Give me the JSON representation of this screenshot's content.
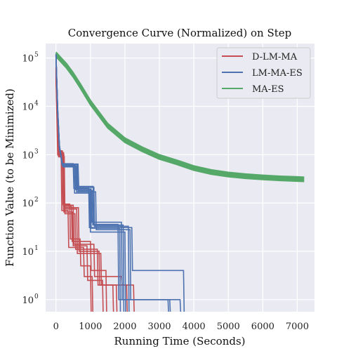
{
  "chart_data": {
    "type": "line",
    "title": "Convergence Curve (Normalized) on Step",
    "xlabel": "Running Time (Seconds)",
    "ylabel": "Function Value (to be Minimized)",
    "xlim": [
      -300,
      7500
    ],
    "ylim_log10": [
      -0.25,
      5.3
    ],
    "y_scale": "log",
    "grid": true,
    "legend_position": "top-right",
    "x_ticks": [
      0,
      1000,
      2000,
      3000,
      4000,
      5000,
      6000,
      7000
    ],
    "x_tick_labels": [
      "0",
      "1000",
      "2000",
      "3000",
      "4000",
      "5000",
      "6000",
      "7000"
    ],
    "y_ticks": [
      1,
      10,
      100,
      1000,
      10000,
      100000
    ],
    "y_tick_bases": [
      "10",
      "10",
      "10",
      "10",
      "10",
      "10"
    ],
    "y_tick_exps": [
      "0",
      "1",
      "2",
      "3",
      "4",
      "5"
    ],
    "colors": {
      "D-LM-MA": "#c44e52",
      "LM-MA-ES": "#4c72b0",
      "MA-ES": "#55a868",
      "plot_bg": "#eaeaf2",
      "grid": "#ffffff"
    },
    "series": [
      {
        "name": "D-LM-MA",
        "color": "#c44e52",
        "runs": [
          [
            [
              0,
              60000
            ],
            [
              60,
              1200
            ],
            [
              180,
              1200
            ],
            [
              200,
              95
            ],
            [
              400,
              95
            ],
            [
              420,
              18
            ],
            [
              700,
              18
            ],
            [
              720,
              5
            ],
            [
              1000,
              5
            ],
            [
              1020,
              0.5
            ]
          ],
          [
            [
              0,
              40000
            ],
            [
              50,
              1000
            ],
            [
              150,
              1000
            ],
            [
              170,
              70
            ],
            [
              350,
              70
            ],
            [
              370,
              12
            ],
            [
              800,
              12
            ],
            [
              820,
              3
            ],
            [
              1050,
              3
            ],
            [
              1070,
              0.5
            ]
          ],
          [
            [
              0,
              50000
            ],
            [
              70,
              1100
            ],
            [
              220,
              1100
            ],
            [
              240,
              85
            ],
            [
              450,
              85
            ],
            [
              470,
              16
            ],
            [
              1000,
              16
            ],
            [
              1020,
              4
            ],
            [
              1450,
              4
            ],
            [
              1470,
              0.5
            ]
          ],
          [
            [
              0,
              55000
            ],
            [
              80,
              900
            ],
            [
              240,
              900
            ],
            [
              260,
              60
            ],
            [
              550,
              60
            ],
            [
              570,
              11
            ],
            [
              1200,
              11
            ],
            [
              1220,
              2
            ],
            [
              1650,
              2
            ],
            [
              1670,
              0.5
            ]
          ],
          [
            [
              0,
              45000
            ],
            [
              60,
              1050
            ],
            [
              200,
              1050
            ],
            [
              220,
              75
            ],
            [
              600,
              75
            ],
            [
              620,
              9
            ],
            [
              1300,
              9
            ],
            [
              1320,
              2
            ],
            [
              1750,
              2
            ],
            [
              1770,
              0.5
            ]
          ],
          [
            [
              0,
              65000
            ],
            [
              55,
              1150
            ],
            [
              190,
              1150
            ],
            [
              210,
              90
            ],
            [
              500,
              90
            ],
            [
              520,
              14
            ],
            [
              1100,
              14
            ],
            [
              1120,
              3
            ],
            [
              1900,
              3
            ],
            [
              1920,
              2
            ],
            [
              2050,
              2
            ],
            [
              2070,
              0.5
            ]
          ],
          [
            [
              0,
              48000
            ],
            [
              65,
              950
            ],
            [
              210,
              950
            ],
            [
              230,
              65
            ],
            [
              480,
              65
            ],
            [
              500,
              13
            ],
            [
              900,
              13
            ],
            [
              920,
              2.5
            ],
            [
              1350,
              2.5
            ],
            [
              1370,
              0.5
            ]
          ],
          [
            [
              0,
              52000
            ],
            [
              75,
              1000
            ],
            [
              230,
              1000
            ],
            [
              250,
              80
            ],
            [
              650,
              80
            ],
            [
              670,
              10
            ],
            [
              1250,
              10
            ],
            [
              1270,
              2
            ],
            [
              2250,
              2
            ],
            [
              2270,
              0.5
            ]
          ]
        ]
      },
      {
        "name": "LM-MA-ES",
        "color": "#4c72b0",
        "runs": [
          [
            [
              0,
              120000
            ],
            [
              50,
              8000
            ],
            [
              100,
              1500
            ],
            [
              180,
              600
            ],
            [
              550,
              600
            ],
            [
              570,
              190
            ],
            [
              1000,
              190
            ],
            [
              1020,
              30
            ],
            [
              1850,
              30
            ],
            [
              1870,
              0.5
            ]
          ],
          [
            [
              0,
              110000
            ],
            [
              50,
              7000
            ],
            [
              100,
              1400
            ],
            [
              200,
              580
            ],
            [
              600,
              580
            ],
            [
              620,
              210
            ],
            [
              1100,
              210
            ],
            [
              1120,
              33
            ],
            [
              2100,
              33
            ],
            [
              2120,
              0.5
            ]
          ],
          [
            [
              0,
              115000
            ],
            [
              50,
              7500
            ],
            [
              100,
              1450
            ],
            [
              190,
              620
            ],
            [
              620,
              620
            ],
            [
              640,
              180
            ],
            [
              1050,
              180
            ],
            [
              1070,
              35
            ],
            [
              1950,
              35
            ],
            [
              1970,
              0.5
            ]
          ],
          [
            [
              0,
              118000
            ],
            [
              50,
              9000
            ],
            [
              100,
              1600
            ],
            [
              170,
              650
            ],
            [
              500,
              650
            ],
            [
              520,
              200
            ],
            [
              950,
              200
            ],
            [
              970,
              31
            ],
            [
              2200,
              31
            ],
            [
              2220,
              4
            ],
            [
              3700,
              4
            ],
            [
              3720,
              0.5
            ]
          ],
          [
            [
              0,
              112000
            ],
            [
              50,
              7200
            ],
            [
              100,
              1300
            ],
            [
              210,
              560
            ],
            [
              580,
              560
            ],
            [
              600,
              170
            ],
            [
              1150,
              170
            ],
            [
              1170,
              28
            ],
            [
              2150,
              28
            ],
            [
              2170,
              1
            ],
            [
              3300,
              1
            ],
            [
              3320,
              0.5
            ]
          ],
          [
            [
              0,
              119000
            ],
            [
              50,
              8500
            ],
            [
              100,
              1550
            ],
            [
              180,
              640
            ],
            [
              640,
              640
            ],
            [
              660,
              220
            ],
            [
              1080,
              220
            ],
            [
              1100,
              36
            ],
            [
              1800,
              36
            ],
            [
              1820,
              1
            ],
            [
              3250,
              1
            ],
            [
              3270,
              0.5
            ]
          ],
          [
            [
              0,
              113000
            ],
            [
              50,
              7700
            ],
            [
              100,
              1500
            ],
            [
              200,
              590
            ],
            [
              520,
              590
            ],
            [
              540,
              160
            ],
            [
              980,
              160
            ],
            [
              1000,
              25
            ],
            [
              2000,
              25
            ],
            [
              2020,
              0.5
            ]
          ],
          [
            [
              0,
              117000
            ],
            [
              50,
              8200
            ],
            [
              100,
              1480
            ],
            [
              190,
              610
            ],
            [
              560,
              610
            ],
            [
              580,
              195
            ],
            [
              1020,
              195
            ],
            [
              1040,
              40
            ],
            [
              1900,
              40
            ],
            [
              1920,
              1
            ],
            [
              3600,
              1
            ],
            [
              3620,
              0.5
            ]
          ]
        ]
      },
      {
        "name": "MA-ES",
        "color": "#55a868",
        "envelope_factors": [
          0.9,
          0.95,
          1.0,
          1.05,
          1.1
        ],
        "x": [
          0,
          100,
          300,
          500,
          700,
          1000,
          1500,
          2000,
          2500,
          3000,
          3500,
          4000,
          4500,
          5000,
          5500,
          6000,
          6500,
          7000,
          7200
        ],
        "y": [
          120000,
          100000,
          70000,
          45000,
          27000,
          12000,
          4000,
          2000,
          1300,
          900,
          700,
          530,
          440,
          390,
          360,
          340,
          325,
          315,
          310
        ]
      }
    ]
  }
}
